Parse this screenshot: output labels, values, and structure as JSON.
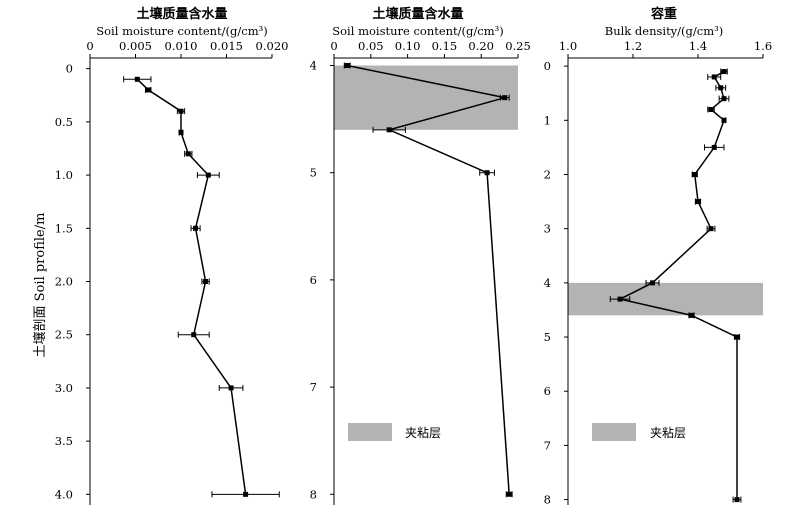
{
  "figure": {
    "ylabel": "土壤剖面 Soil profile/m",
    "legend_label": "夹粘层"
  },
  "chart_data": [
    {
      "type": "line",
      "title_cn": "土壤质量含水量",
      "title_en": "Soil moisture content/(g/cm³)",
      "xlim": [
        0,
        0.02
      ],
      "ylim": [
        4.1,
        -0.1
      ],
      "x_ticks": [
        "0",
        "0.005",
        "0.010",
        "0.015",
        "0.020"
      ],
      "x_tick_values": [
        0,
        0.005,
        0.01,
        0.015,
        0.02
      ],
      "y_ticks": [
        "0",
        "0.5",
        "1.0",
        "1.5",
        "2.0",
        "2.5",
        "3.0",
        "3.5",
        "4.0"
      ],
      "y_tick_values": [
        0,
        0.5,
        1.0,
        1.5,
        2.0,
        2.5,
        3.0,
        3.5,
        4.0
      ],
      "legend_position": "none",
      "series": [
        {
          "points": [
            {
              "depth": 0.1,
              "value": 0.0052,
              "err": 0.0015
            },
            {
              "depth": 0.2,
              "value": 0.0064,
              "err": 0.0003
            },
            {
              "depth": 0.4,
              "value": 0.01,
              "err": 0.0004
            },
            {
              "depth": 0.6,
              "value": 0.01,
              "err": 0.0002
            },
            {
              "depth": 0.8,
              "value": 0.0108,
              "err": 0.0004
            },
            {
              "depth": 1.0,
              "value": 0.013,
              "err": 0.0012
            },
            {
              "depth": 1.5,
              "value": 0.0116,
              "err": 0.0005
            },
            {
              "depth": 2.0,
              "value": 0.0127,
              "err": 0.0004
            },
            {
              "depth": 2.5,
              "value": 0.0114,
              "err": 0.0017
            },
            {
              "depth": 3.0,
              "value": 0.0155,
              "err": 0.0013
            },
            {
              "depth": 4.0,
              "value": 0.0171,
              "err": 0.0037
            }
          ]
        }
      ]
    },
    {
      "type": "line",
      "title_cn": "土壤质量含水量",
      "title_en": "Soil moisture content/(g/cm³)",
      "xlim": [
        0,
        0.25
      ],
      "ylim": [
        8.1,
        3.93
      ],
      "x_ticks": [
        "0",
        "0.05",
        "0.10",
        "0.15",
        "0.20",
        "0.25"
      ],
      "x_tick_values": [
        0,
        0.05,
        0.1,
        0.15,
        0.2,
        0.25
      ],
      "y_ticks": [
        "4",
        "5",
        "6",
        "7",
        "8"
      ],
      "y_tick_values": [
        4,
        5,
        6,
        7,
        8
      ],
      "clay_layer": [
        4.0,
        4.6
      ],
      "legend_position": "bottom-left",
      "series": [
        {
          "points": [
            {
              "depth": 4.0,
              "value": 0.018,
              "err": 0.004
            },
            {
              "depth": 4.3,
              "value": 0.232,
              "err": 0.006
            },
            {
              "depth": 4.6,
              "value": 0.075,
              "err": 0.022
            },
            {
              "depth": 5.0,
              "value": 0.208,
              "err": 0.01
            },
            {
              "depth": 8.0,
              "value": 0.238,
              "err": 0.004
            }
          ]
        }
      ]
    },
    {
      "type": "line",
      "title_cn": "容重",
      "title_en": "Bulk density/(g/cm³)",
      "xlim": [
        1.0,
        1.6
      ],
      "ylim": [
        8.1,
        -0.15
      ],
      "x_ticks": [
        "1.0",
        "1.2",
        "1.4",
        "1.6"
      ],
      "x_tick_values": [
        1.0,
        1.2,
        1.4,
        1.6
      ],
      "y_ticks": [
        "0",
        "1",
        "2",
        "3",
        "4",
        "5",
        "6",
        "7",
        "8"
      ],
      "y_tick_values": [
        0,
        1,
        2,
        3,
        4,
        5,
        6,
        7,
        8
      ],
      "clay_layer": [
        4.0,
        4.6
      ],
      "legend_position": "bottom-left",
      "series": [
        {
          "points": [
            {
              "depth": 0.1,
              "value": 1.48,
              "err": 0.01
            },
            {
              "depth": 0.2,
              "value": 1.45,
              "err": 0.02
            },
            {
              "depth": 0.4,
              "value": 1.47,
              "err": 0.015
            },
            {
              "depth": 0.6,
              "value": 1.48,
              "err": 0.015
            },
            {
              "depth": 0.8,
              "value": 1.44,
              "err": 0.01
            },
            {
              "depth": 1.0,
              "value": 1.48,
              "err": 0.005
            },
            {
              "depth": 1.5,
              "value": 1.45,
              "err": 0.03
            },
            {
              "depth": 2.0,
              "value": 1.39,
              "err": 0.008
            },
            {
              "depth": 2.5,
              "value": 1.4,
              "err": 0.008
            },
            {
              "depth": 3.0,
              "value": 1.44,
              "err": 0.012
            },
            {
              "depth": 4.0,
              "value": 1.26,
              "err": 0.02
            },
            {
              "depth": 4.3,
              "value": 1.16,
              "err": 0.03
            },
            {
              "depth": 4.6,
              "value": 1.38,
              "err": 0.008
            },
            {
              "depth": 5.0,
              "value": 1.52,
              "err": 0.008
            },
            {
              "depth": 8.0,
              "value": 1.52,
              "err": 0.012
            }
          ]
        }
      ]
    }
  ]
}
